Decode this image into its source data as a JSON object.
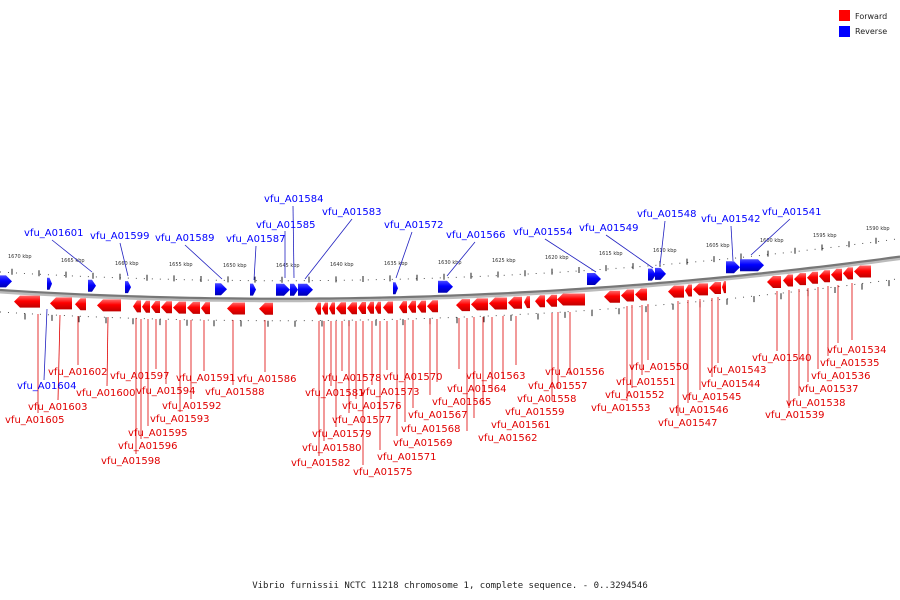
{
  "title": "Vibrio furnissii NCTC 11218 chromosome 1, complete sequence. - 0..3294546",
  "legend": [
    {
      "label": "Forward",
      "color": "#ff0000"
    },
    {
      "label": "Reverse",
      "color": "#0000ff"
    }
  ],
  "colors": {
    "forward": "#ff0000",
    "reverse": "#0000ff",
    "backbone": "#777777",
    "forward_line": "#e00000",
    "reverse_line": "#2020c0"
  },
  "axis": {
    "unit": "kbp",
    "ticks": [
      {
        "label": "1670 kbp",
        "kbp": 1670
      },
      {
        "label": "1665 kbp",
        "kbp": 1665
      },
      {
        "label": "1660 kbp",
        "kbp": 1660
      },
      {
        "label": "1655 kbp",
        "kbp": 1655
      },
      {
        "label": "1650 kbp",
        "kbp": 1650
      },
      {
        "label": "1645 kbp",
        "kbp": 1645
      },
      {
        "label": "1640 kbp",
        "kbp": 1640
      },
      {
        "label": "1635 kbp",
        "kbp": 1635
      },
      {
        "label": "1630 kbp",
        "kbp": 1630
      },
      {
        "label": "1625 kbp",
        "kbp": 1625
      },
      {
        "label": "1620 kbp",
        "kbp": 1620
      },
      {
        "label": "1615 kbp",
        "kbp": 1615
      },
      {
        "label": "1610 kbp",
        "kbp": 1610
      },
      {
        "label": "1605 kbp",
        "kbp": 1605
      },
      {
        "label": "1600 kbp",
        "kbp": 1600
      },
      {
        "label": "1595 kbp",
        "kbp": 1595
      },
      {
        "label": "1590 kbp",
        "kbp": 1590
      }
    ]
  },
  "reverse_genes": [
    {
      "label": "vfu_A01601"
    },
    {
      "label": "vfu_A01599"
    },
    {
      "label": "vfu_A01589"
    },
    {
      "label": "vfu_A01587"
    },
    {
      "label": "vfu_A01585"
    },
    {
      "label": "vfu_A01584"
    },
    {
      "label": "vfu_A01583"
    },
    {
      "label": "vfu_A01572"
    },
    {
      "label": "vfu_A01566"
    },
    {
      "label": "vfu_A01554"
    },
    {
      "label": "vfu_A01549"
    },
    {
      "label": "vfu_A01548"
    },
    {
      "label": "vfu_A01542"
    },
    {
      "label": "vfu_A01541"
    },
    {
      "label": "vfu_A01604"
    }
  ],
  "forward_genes": [
    {
      "label": "vfu_A01605"
    },
    {
      "label": "vfu_A01603"
    },
    {
      "label": "vfu_A01602"
    },
    {
      "label": "vfu_A01600"
    },
    {
      "label": "vfu_A01598"
    },
    {
      "label": "vfu_A01596"
    },
    {
      "label": "vfu_A01595"
    },
    {
      "label": "vfu_A01597"
    },
    {
      "label": "vfu_A01594"
    },
    {
      "label": "vfu_A01593"
    },
    {
      "label": "vfu_A01592"
    },
    {
      "label": "vfu_A01591"
    },
    {
      "label": "vfu_A01588"
    },
    {
      "label": "vfu_A01586"
    },
    {
      "label": "vfu_A01582"
    },
    {
      "label": "vfu_A01580"
    },
    {
      "label": "vfu_A01581"
    },
    {
      "label": "vfu_A01579"
    },
    {
      "label": "vfu_A01578"
    },
    {
      "label": "vfu_A01577"
    },
    {
      "label": "vfu_A01576"
    },
    {
      "label": "vfu_A01575"
    },
    {
      "label": "vfu_A01573"
    },
    {
      "label": "vfu_A01571"
    },
    {
      "label": "vfu_A01570"
    },
    {
      "label": "vfu_A01569"
    },
    {
      "label": "vfu_A01568"
    },
    {
      "label": "vfu_A01567"
    },
    {
      "label": "vfu_A01565"
    },
    {
      "label": "vfu_A01564"
    },
    {
      "label": "vfu_A01563"
    },
    {
      "label": "vfu_A01562"
    },
    {
      "label": "vfu_A01561"
    },
    {
      "label": "vfu_A01559"
    },
    {
      "label": "vfu_A01558"
    },
    {
      "label": "vfu_A01557"
    },
    {
      "label": "vfu_A01556"
    },
    {
      "label": "vfu_A01553"
    },
    {
      "label": "vfu_A01552"
    },
    {
      "label": "vfu_A01551"
    },
    {
      "label": "vfu_A01550"
    },
    {
      "label": "vfu_A01547"
    },
    {
      "label": "vfu_A01546"
    },
    {
      "label": "vfu_A01545"
    },
    {
      "label": "vfu_A01544"
    },
    {
      "label": "vfu_A01543"
    },
    {
      "label": "vfu_A01540"
    },
    {
      "label": "vfu_A01539"
    },
    {
      "label": "vfu_A01538"
    },
    {
      "label": "vfu_A01537"
    },
    {
      "label": "vfu_A01536"
    },
    {
      "label": "vfu_A01535"
    },
    {
      "label": "vfu_A01534"
    }
  ]
}
